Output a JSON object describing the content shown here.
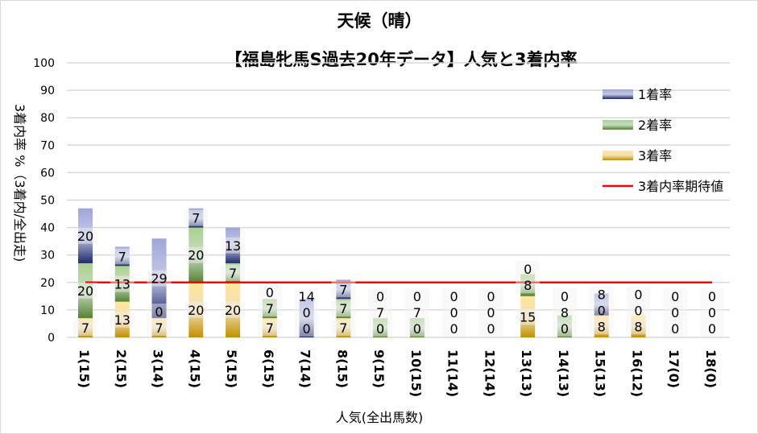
{
  "chart_data": {
    "type": "bar",
    "stacked": true,
    "title": "天候（晴）",
    "subtitle": "【福島牝馬S過去20年データ】人気と3着内率",
    "xlabel": "人気(全出馬数)",
    "ylabel": "3着内率 %（3着内/全出走)",
    "ylim": [
      0,
      100
    ],
    "yticks": [
      0,
      10,
      20,
      30,
      40,
      50,
      60,
      70,
      80,
      90,
      100
    ],
    "grid": true,
    "legend_position": "right",
    "categories": [
      "1(15)",
      "2(15)",
      "3(14)",
      "4(15)",
      "5(15)",
      "6(15)",
      "7(14)",
      "8(15)",
      "9(15)",
      "10(15)",
      "11(14)",
      "12(14)",
      "13(13)",
      "14(13)",
      "15(13)",
      "16(12)",
      "17(0)",
      "18(0)"
    ],
    "series": [
      {
        "name": "3着率",
        "color": "#d6a52a",
        "values": [
          7,
          13,
          7,
          20,
          20,
          7,
          0,
          7,
          0,
          0,
          0,
          0,
          15,
          0,
          8,
          8,
          0,
          0
        ]
      },
      {
        "name": "2着率",
        "color": "#70ad47",
        "values": [
          20,
          13,
          0,
          20,
          7,
          7,
          0,
          7,
          7,
          7,
          0,
          0,
          8,
          8,
          0,
          0,
          0,
          0
        ]
      },
      {
        "name": "1着率",
        "color": "#4a5aa8",
        "values": [
          20,
          7,
          29,
          7,
          13,
          0,
          14,
          7,
          0,
          0,
          0,
          0,
          0,
          0,
          8,
          0,
          0,
          0
        ]
      }
    ],
    "reference_line": {
      "name": "3着内率期待値",
      "value": 20,
      "color": "#ff0000"
    }
  }
}
